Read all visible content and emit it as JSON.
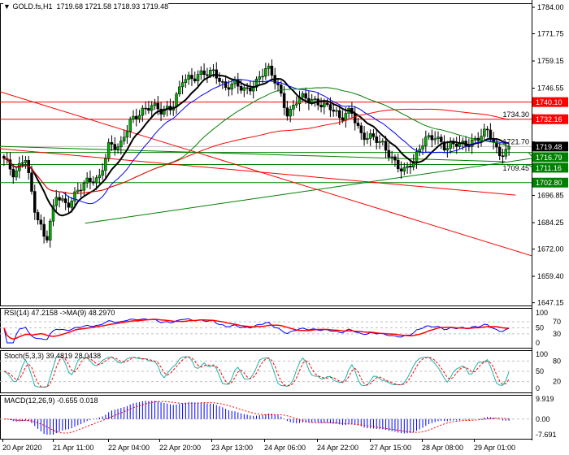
{
  "header": {
    "symbol": "GOLD.fs,H1",
    "ohlc": "1719.68 1721.58 1718.93 1719.48"
  },
  "chart_data": [
    {
      "type": "candlestick",
      "title": "GOLD.fs,H1",
      "ylim": [
        1647.15,
        1784.0
      ],
      "y_ticks": [
        "1784.00",
        "1771.75",
        "1759.15",
        "1746.55",
        "1734.30",
        "1721.70",
        "1709.45",
        "1696.85",
        "1684.25",
        "1672.00",
        "1659.40",
        "1647.15"
      ],
      "x_ticks": [
        "20 Apr 2020",
        "21 Apr 11:00",
        "22 Apr 04:00",
        "22 Apr 20:00",
        "23 Apr 13:00",
        "24 Apr 06:00",
        "24 Apr 22:00",
        "27 Apr 15:00",
        "28 Apr 08:00",
        "29 Apr 01:00"
      ],
      "bars": 165,
      "close_path": [
        1714,
        1704.6,
        1716,
        1689.5,
        1674.5,
        1697,
        1693,
        1699,
        1702.7,
        1704.6,
        1721.5,
        1717.8,
        1731,
        1736.6,
        1738.5,
        1734.7,
        1738.5,
        1751.6,
        1749.8,
        1753.5,
        1755.4,
        1746,
        1747.9,
        1746,
        1749.8,
        1755.4,
        1748,
        1734.7,
        1742.2,
        1740.3,
        1740.3,
        1738.5,
        1731,
        1736.6,
        1725.3,
        1723.4,
        1719.6,
        1714,
        1708.4,
        1712,
        1723.4,
        1725.3,
        1717.8,
        1720.4,
        1721.5,
        1723.4,
        1726,
        1715.9,
        1719.5
      ],
      "moving_averages": [
        {
          "period": 10,
          "color": "#000000"
        },
        {
          "period": 20,
          "color": "#0000ff"
        },
        {
          "period": 50,
          "color": "#008000"
        },
        {
          "period": 100,
          "color": "#ff0000"
        }
      ],
      "levels": [
        {
          "label": "1740.10",
          "value": 1740.1,
          "color": "#ff0000"
        },
        {
          "label": "1732.16",
          "value": 1732.16,
          "color": "#ff0000"
        },
        {
          "label": "1716.79",
          "value": 1716.79,
          "color": "#008000"
        },
        {
          "label": "1711.16",
          "value": 1711.16,
          "color": "#008000"
        },
        {
          "label": "1702.80",
          "value": 1702.8,
          "color": "#008000"
        }
      ],
      "bid": {
        "label": "1719.48",
        "value": 1719.48
      },
      "trendlines": [
        {
          "color": "#ff0000",
          "from": [
            0,
            1744.9
          ],
          "to": [
            1,
            1668.9
          ]
        },
        {
          "color": "#ff0000",
          "from": [
            0,
            1718.5
          ],
          "to": [
            0.97,
            1697.0
          ]
        },
        {
          "color": "#008000",
          "from": [
            0.16,
            1684.0
          ],
          "to": [
            1,
            1714.0
          ]
        },
        {
          "color": "#008000",
          "from": [
            0,
            1719.6
          ],
          "to": [
            0.95,
            1712.5
          ]
        }
      ]
    },
    {
      "type": "line",
      "title": "RSI(14) 47.2158  ->MA(9) 48.2970",
      "ylim": [
        0,
        100
      ],
      "y_ticks": [
        "100",
        "70",
        "50",
        "30",
        "0"
      ],
      "levels": [
        70,
        50,
        30
      ],
      "series": [
        {
          "name": "RSI(14)",
          "color": "#0000ff"
        },
        {
          "name": "MA(9)",
          "color": "#ff0000"
        }
      ]
    },
    {
      "type": "line",
      "title": "Stoch(5,3,3) 39.4819 28.0438",
      "ylim": [
        0,
        100
      ],
      "y_ticks": [
        "100",
        "80",
        "50",
        "20",
        "0"
      ],
      "levels": [
        80,
        50,
        20
      ],
      "series": [
        {
          "name": "main",
          "color": "#20b2aa"
        },
        {
          "name": "signal",
          "color": "#ff0000"
        }
      ]
    },
    {
      "type": "bar",
      "title": "MACD(12,26,9) -0.655 0.018",
      "ylim": [
        -7.691,
        9.919
      ],
      "y_ticks": [
        "9.919",
        "0.00",
        "-7.691"
      ],
      "series": [
        {
          "name": "MACD",
          "color": "#0000ff"
        },
        {
          "name": "signal",
          "color": "#ff0000"
        }
      ]
    }
  ]
}
